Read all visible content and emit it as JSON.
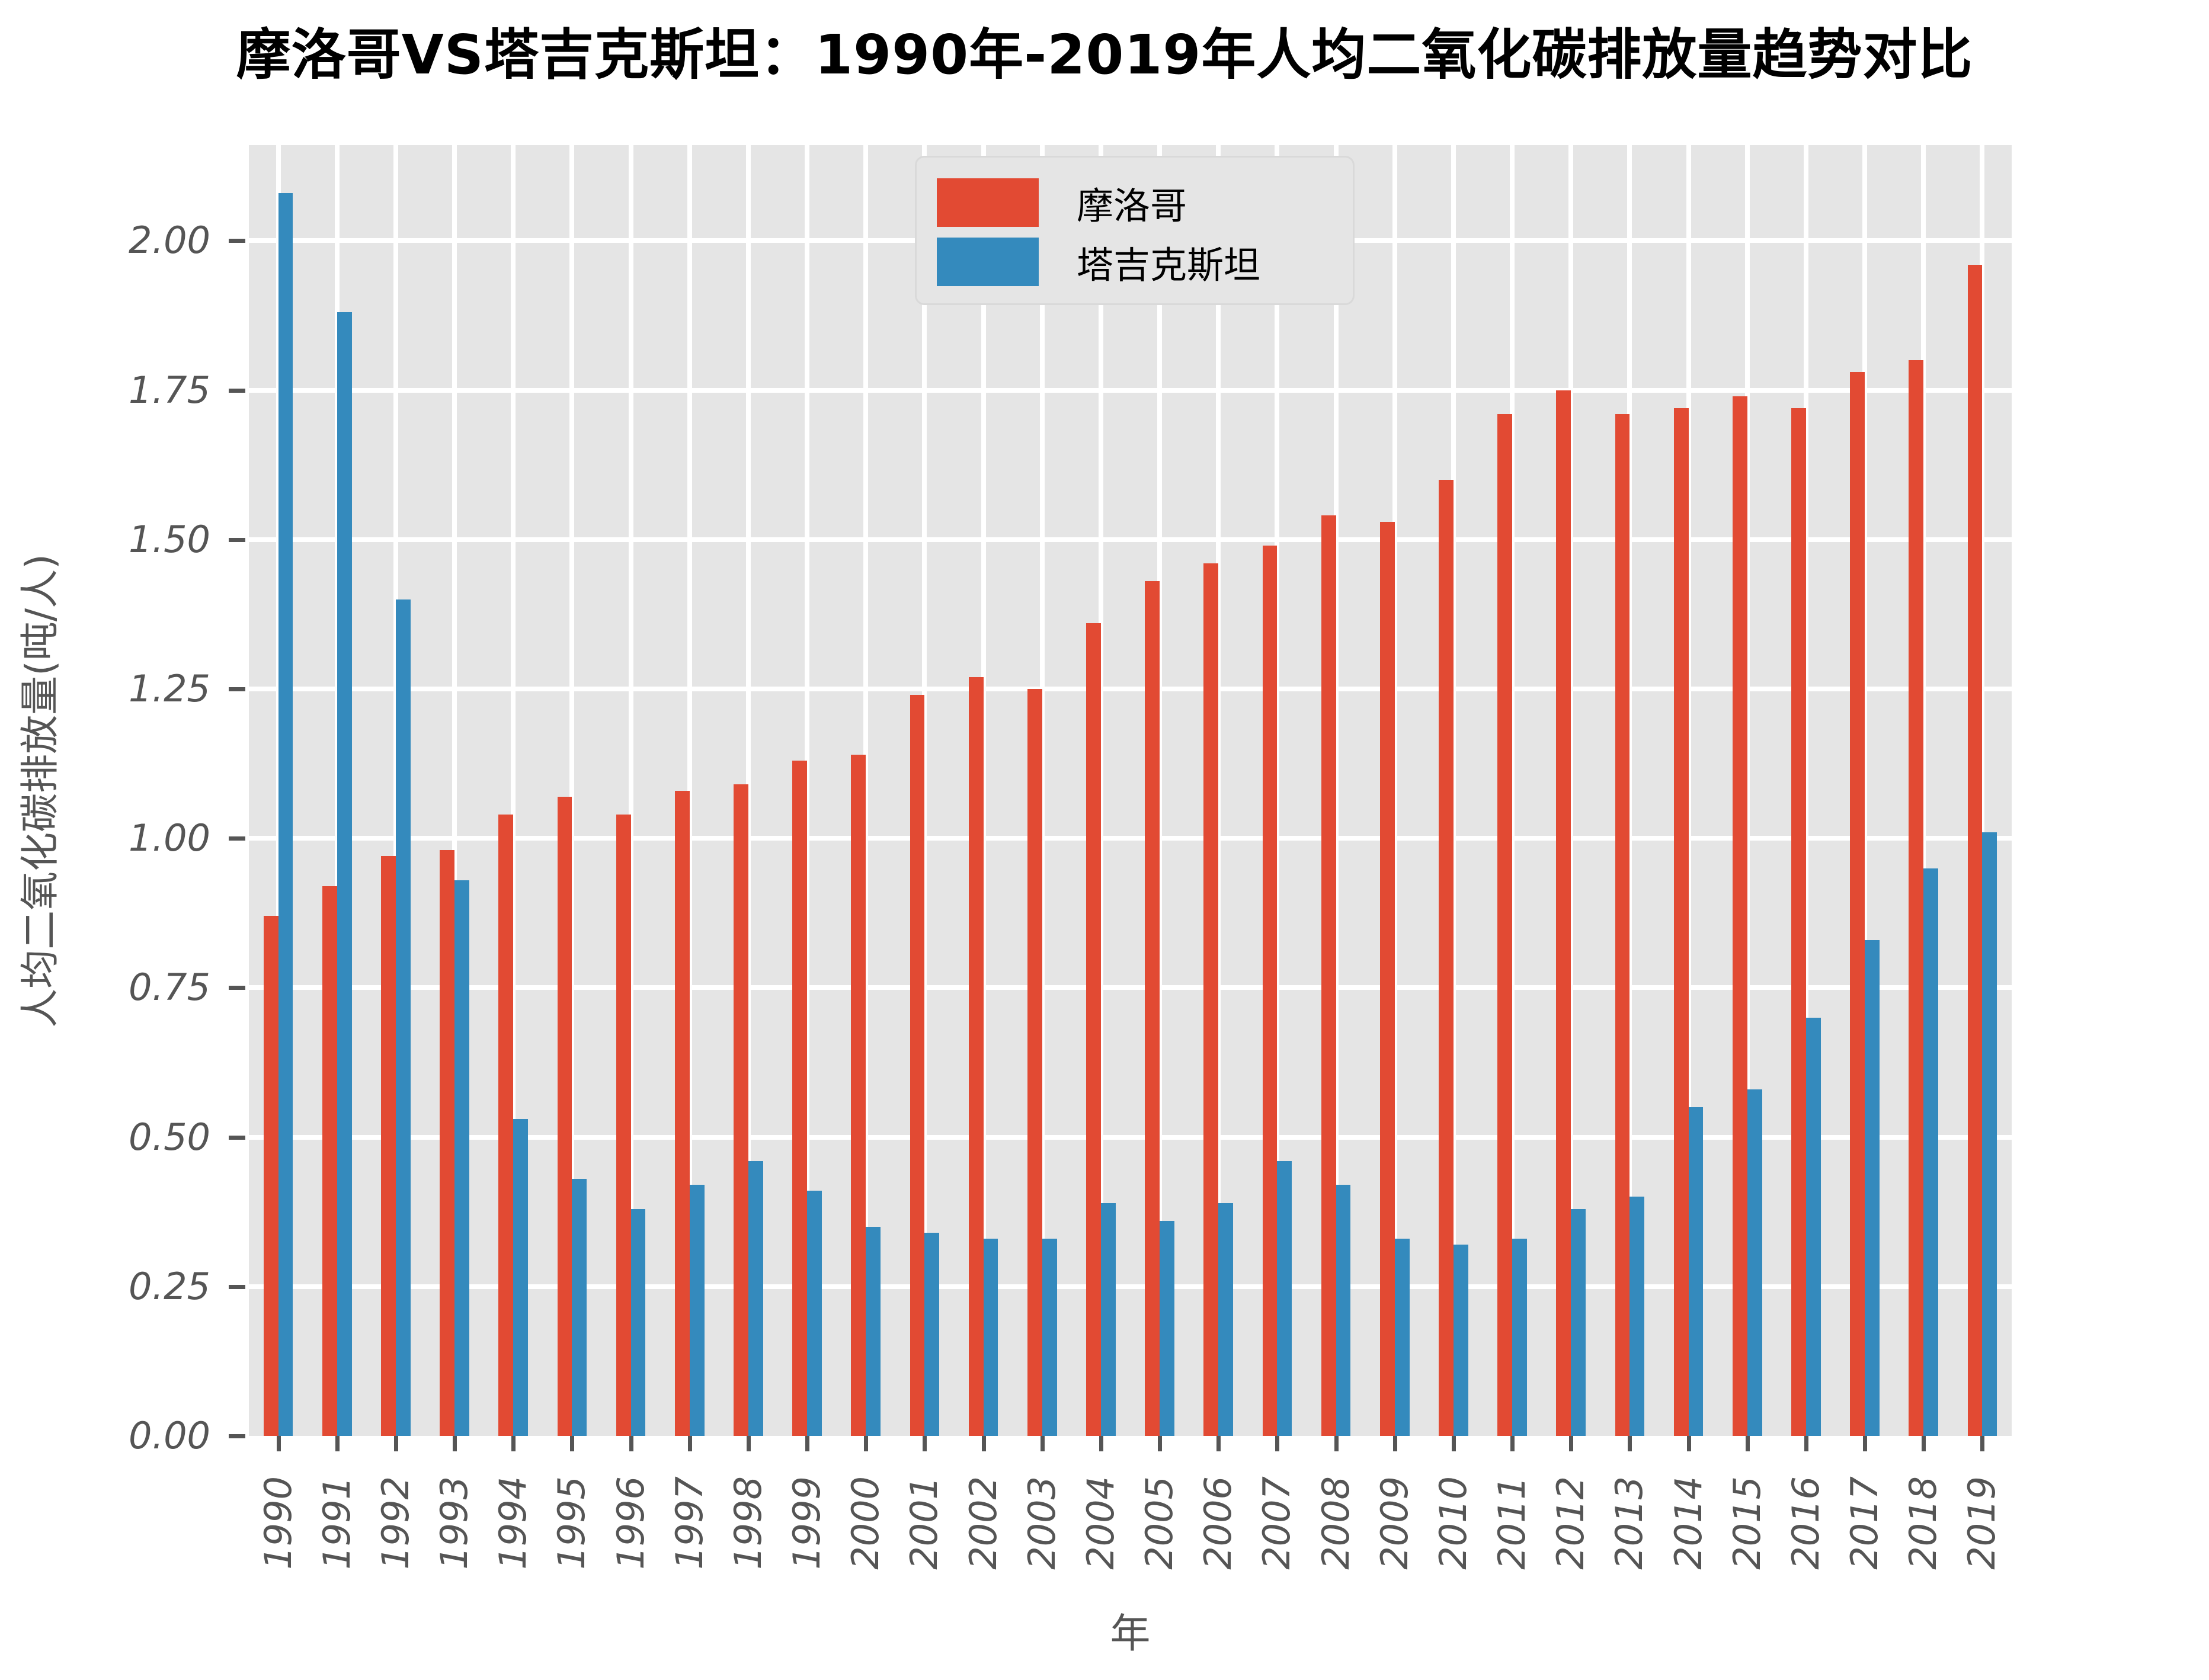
{
  "title": "摩洛哥VS塔吉克斯坦：1990年-2019年人均二氧化碳排放量趋势对比",
  "colors": {
    "morocco": "#E24A33",
    "tajikistan": "#348ABD",
    "plot_background": "#E5E5E5",
    "gridline": "#FFFFFF",
    "tick_text": "#555555",
    "title_text": "#000000",
    "figure_background": "#FFFFFF"
  },
  "legend": {
    "entries": [
      {
        "key": "morocco",
        "label": "摩洛哥"
      },
      {
        "key": "tajikistan",
        "label": "塔吉克斯坦"
      }
    ]
  },
  "chart_data": {
    "type": "bar",
    "title": "摩洛哥VS塔吉克斯坦：1990年-2019年人均二氧化碳排放量趋势对比",
    "xlabel": "年",
    "ylabel": "人均二氧化碳排放量(吨/人)",
    "categories": [
      "1990",
      "1991",
      "1992",
      "1993",
      "1994",
      "1995",
      "1996",
      "1997",
      "1998",
      "1999",
      "2000",
      "2001",
      "2002",
      "2003",
      "2004",
      "2005",
      "2006",
      "2007",
      "2008",
      "2009",
      "2010",
      "2011",
      "2012",
      "2013",
      "2014",
      "2015",
      "2016",
      "2017",
      "2018",
      "2019"
    ],
    "series": [
      {
        "name": "摩洛哥",
        "key": "morocco",
        "color": "#E24A33",
        "values": [
          0.87,
          0.92,
          0.97,
          0.98,
          1.04,
          1.07,
          1.04,
          1.08,
          1.09,
          1.13,
          1.14,
          1.24,
          1.27,
          1.25,
          1.36,
          1.43,
          1.46,
          1.49,
          1.54,
          1.53,
          1.6,
          1.71,
          1.75,
          1.71,
          1.72,
          1.74,
          1.72,
          1.78,
          1.8,
          1.96
        ]
      },
      {
        "name": "塔吉克斯坦",
        "key": "tajikistan",
        "color": "#348ABD",
        "values": [
          2.08,
          1.88,
          1.4,
          0.93,
          0.53,
          0.43,
          0.38,
          0.42,
          0.46,
          0.41,
          0.35,
          0.34,
          0.33,
          0.33,
          0.39,
          0.36,
          0.39,
          0.46,
          0.42,
          0.33,
          0.32,
          0.33,
          0.38,
          0.4,
          0.55,
          0.58,
          0.7,
          0.83,
          0.95,
          1.01
        ]
      }
    ],
    "ylim": [
      0,
      2.16
    ],
    "yticks": [
      0,
      0.25,
      0.5,
      0.75,
      1.0,
      1.25,
      1.5,
      1.75,
      2.0
    ],
    "ytick_labels": [
      "0.00",
      "0.25",
      "0.50",
      "0.75",
      "1.00",
      "1.25",
      "1.50",
      "1.75",
      "2.00"
    ],
    "grid": true,
    "legend_position": "upper center-left",
    "bar_group_width_fraction": 0.5
  }
}
